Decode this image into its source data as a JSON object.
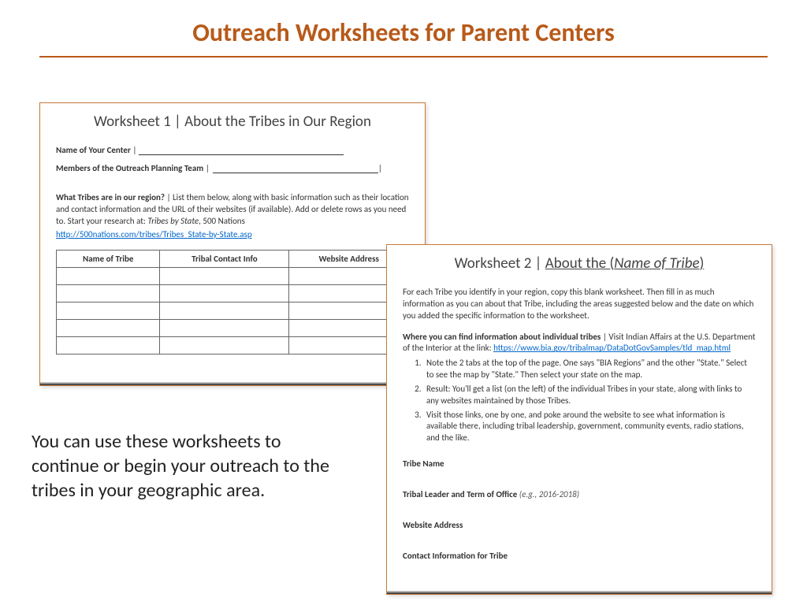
{
  "colors": {
    "accent": "#b85a1a",
    "worksheet_border": "#c97a3a",
    "link": "#0066cc",
    "text": "#333333",
    "body_text": "#222222"
  },
  "slide": {
    "title": "Outreach Worksheets for Parent Centers",
    "body_text": "You can use these worksheets to continue or begin your outreach to the tribes in your geographic area."
  },
  "worksheet1": {
    "title_prefix": "Worksheet 1 | ",
    "title_rest": "About the Tribes in Our Region",
    "field1_label": "Name of Your Center",
    "field2_label": "Members of the Outreach Planning Team",
    "question_label": "What Tribes are in our region?",
    "question_text": " | List them below, along with basic information such as their location and contact information and the URL of their websites (if available). Add or delete rows as you need to. Start your research at: ",
    "research_ref_ital": "Tribes by State",
    "research_ref_tail": ", 500 Nations",
    "link_text": "http://500nations.com/tribes/Tribes_State-by-State.asp",
    "table": {
      "columns": [
        "Name of Tribe",
        "Tribal Contact Info",
        "Website Address"
      ],
      "blank_rows": 5
    }
  },
  "worksheet2": {
    "title_prefix": "Worksheet 2 | ",
    "title_under_pre": "About the (",
    "title_under_ital": "Name of Tribe",
    "title_under_post": ")",
    "intro": "For each Tribe you identify in your region, copy this blank worksheet. Then fill in as much information as you can about that Tribe, including the areas suggested below and the date on which you added the specific information to the worksheet.",
    "where_label": "Where you can find information about individual tribes",
    "where_text": " | Visit Indian Affairs at the U.S. Department of the Interior at the link: ",
    "link_text": "https://www.bia.gov/tribalmap/DataDotGovSamples/tld_map.html",
    "steps": [
      "Note the 2 tabs at the top of the page. One says \"BIA Regions\" and the other \"State.\" Select to see the map by \"State.\" Then select your state on the map.",
      "Result: You'll get a list (on the left) of the individual Tribes in your state, along with links to any websites maintained by those Tribes.",
      "Visit those links, one by one, and poke around the website to see what information is available there, including tribal leadership, government, community events, radio stations, and the like."
    ],
    "sections": {
      "tribe_name": "Tribe Name",
      "leader_label": "Tribal Leader and Term of Office",
      "leader_eg": " (e.g., 2016-2018)",
      "website": "Website Address",
      "contact": "Contact Information for Tribe"
    }
  }
}
